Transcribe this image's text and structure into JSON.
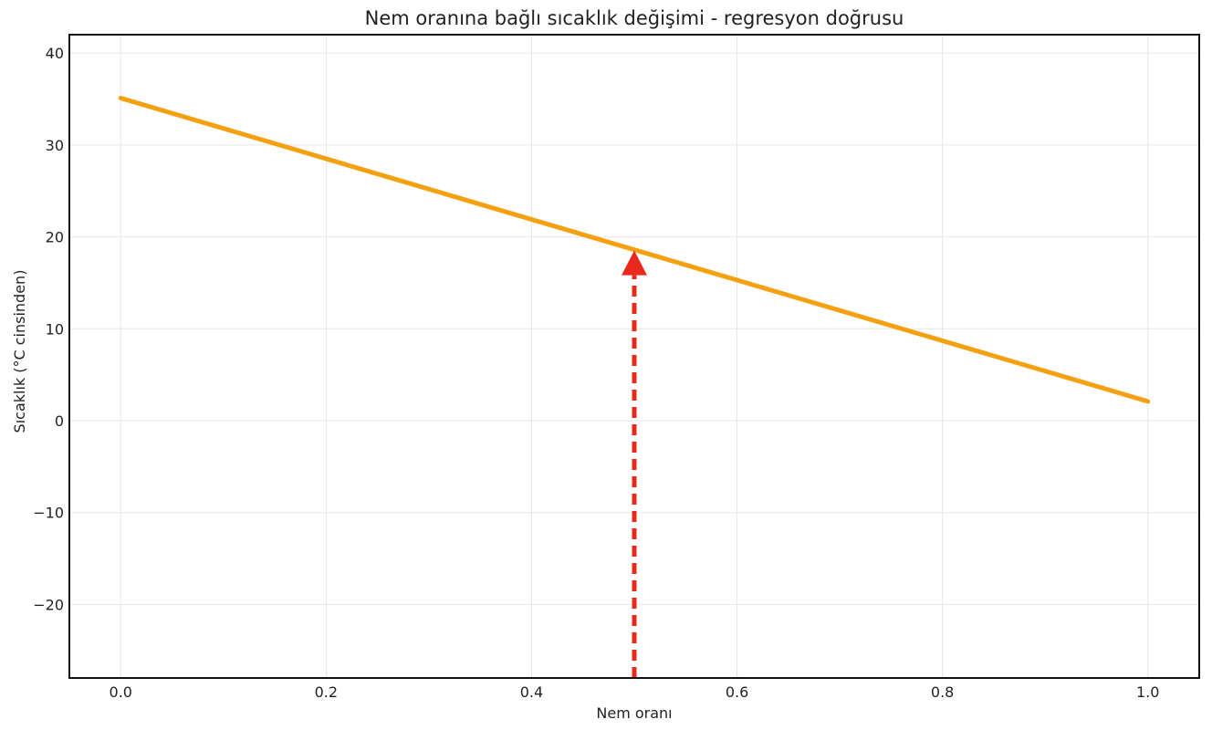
{
  "chart_data": {
    "type": "line",
    "title": "Nem oranına bağlı sıcaklık değişimi - regresyon doğrusu",
    "xlabel": "Nem oranı",
    "ylabel": "Sıcaklık (°C cinsinden)",
    "xlim": [
      -0.05,
      1.05
    ],
    "ylim": [
      -28,
      42
    ],
    "x_ticks": [
      0.0,
      0.2,
      0.4,
      0.6,
      0.8,
      1.0
    ],
    "x_tick_labels": [
      "0.0",
      "0.2",
      "0.4",
      "0.6",
      "0.8",
      "1.0"
    ],
    "y_ticks": [
      -20,
      -10,
      0,
      10,
      20,
      30,
      40
    ],
    "y_tick_labels": [
      "−20",
      "−10",
      "0",
      "10",
      "20",
      "30",
      "40"
    ],
    "grid": true,
    "series": [
      {
        "x": [
          0.0,
          1.0
        ],
        "y": [
          35.1,
          2.1
        ],
        "color": "#f5a011",
        "style": "solid"
      }
    ],
    "annotations": [
      {
        "type": "arrow",
        "x": 0.5,
        "y_from": -28,
        "y_to": 18.5,
        "color": "#e8291c",
        "style": "dashed"
      }
    ]
  }
}
